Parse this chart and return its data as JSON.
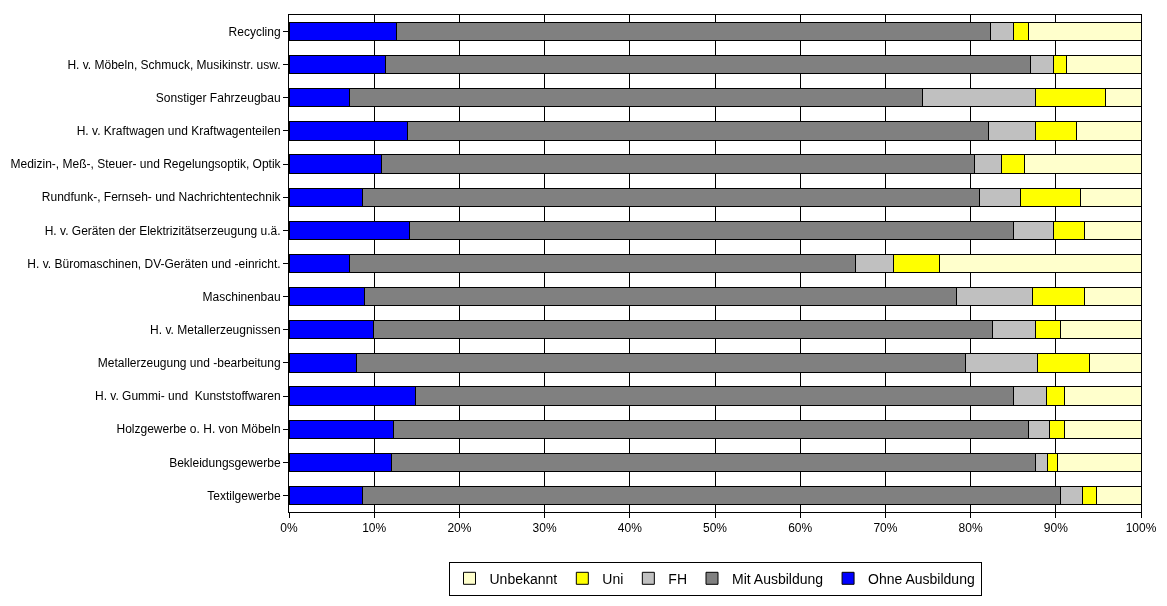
{
  "chart_data": {
    "type": "bar",
    "orientation": "horizontal",
    "stacked": true,
    "grid": "x",
    "legend": "bottom",
    "categories": [
      "Recycling",
      "H. v. Möbeln, Schmuck, Musikinstr. usw.",
      "Sonstiger Fahrzeugbau",
      "H. v. Kraftwagen und Kraftwagenteilen",
      "Medizin-, Meß-, Steuer- und Regelungsoptik, Optik",
      "Rundfunk-, Fernseh- und Nachrichtentechnik",
      "H. v. Geräten der Elektrizitätserzeugung u.ä.",
      "H. v. Büromaschinen, DV-Geräten und -einricht.",
      "Maschinenbau",
      "H. v. Metallerzeugnissen",
      "Metallerzeugung und -bearbeitung",
      "H. v. Gummi- und  Kunststoffwaren",
      "Holzgewerbe o. H. von Möbeln",
      "Bekleidungsgewerbe",
      "Textilgewerbe"
    ],
    "series": [
      {
        "name": "Ohne Ausbildung",
        "color": "#0000ff",
        "values": [
          12.6,
          11.3,
          7.1,
          13.9,
          10.8,
          8.6,
          14.1,
          7.1,
          8.9,
          9.9,
          7.9,
          14.9,
          12.3,
          12.0,
          8.6
        ]
      },
      {
        "name": "Mit Ausbildung",
        "color": "#808080",
        "values": [
          69.7,
          75.7,
          67.3,
          68.2,
          69.7,
          72.4,
          70.9,
          59.4,
          69.4,
          72.7,
          71.5,
          70.1,
          74.5,
          75.6,
          82.0
        ]
      },
      {
        "name": "FH",
        "color": "#c0c0c0",
        "values": [
          2.7,
          2.7,
          13.2,
          5.5,
          3.1,
          4.8,
          4.7,
          4.5,
          9.0,
          5.0,
          8.4,
          3.9,
          2.5,
          1.4,
          2.5
        ]
      },
      {
        "name": "Uni",
        "color": "#ffff00",
        "values": [
          1.8,
          1.6,
          8.2,
          4.8,
          2.7,
          7.1,
          3.7,
          5.3,
          6.1,
          2.9,
          6.1,
          2.1,
          1.7,
          1.2,
          1.7
        ]
      },
      {
        "name": "Unbekannt",
        "color": "#ffffcc",
        "values": [
          13.2,
          8.7,
          4.2,
          7.6,
          13.7,
          7.1,
          6.6,
          23.7,
          6.6,
          9.5,
          6.1,
          9.0,
          9.0,
          9.8,
          5.2
        ]
      }
    ],
    "xlim": [
      0,
      100
    ],
    "xticks": [
      {
        "value": 0,
        "label": "0%"
      },
      {
        "value": 10,
        "label": "10%"
      },
      {
        "value": 20,
        "label": "20%"
      },
      {
        "value": 30,
        "label": "30%"
      },
      {
        "value": 40,
        "label": "40%"
      },
      {
        "value": 50,
        "label": "50%"
      },
      {
        "value": 60,
        "label": "60%"
      },
      {
        "value": 70,
        "label": "70%"
      },
      {
        "value": 80,
        "label": "80%"
      },
      {
        "value": 90,
        "label": "90%"
      },
      {
        "value": 100,
        "label": "100%"
      }
    ]
  }
}
